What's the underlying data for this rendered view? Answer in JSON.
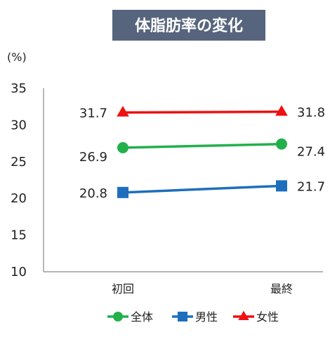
{
  "chart_data": {
    "type": "line",
    "title": "体脂肪率の変化",
    "ylabel": "(%)",
    "xlabel": "",
    "categories": [
      "初回",
      "最終"
    ],
    "ylim": [
      10,
      35
    ],
    "yticks": [
      10,
      15,
      20,
      25,
      30,
      35
    ],
    "grid": false,
    "legend_position": "bottom",
    "series": [
      {
        "name": "全体",
        "values": [
          26.9,
          27.4
        ],
        "color": "#22b04b",
        "marker": "circle",
        "labels": [
          "26.9",
          "27.4"
        ]
      },
      {
        "name": "男性",
        "values": [
          20.8,
          21.7
        ],
        "color": "#1e6ebe",
        "marker": "square",
        "labels": [
          "20.8",
          "21.7"
        ]
      },
      {
        "name": "女性",
        "values": [
          31.7,
          31.8
        ],
        "color": "#ee1111",
        "marker": "triangle",
        "labels": [
          "31.7",
          "31.8"
        ]
      }
    ]
  }
}
